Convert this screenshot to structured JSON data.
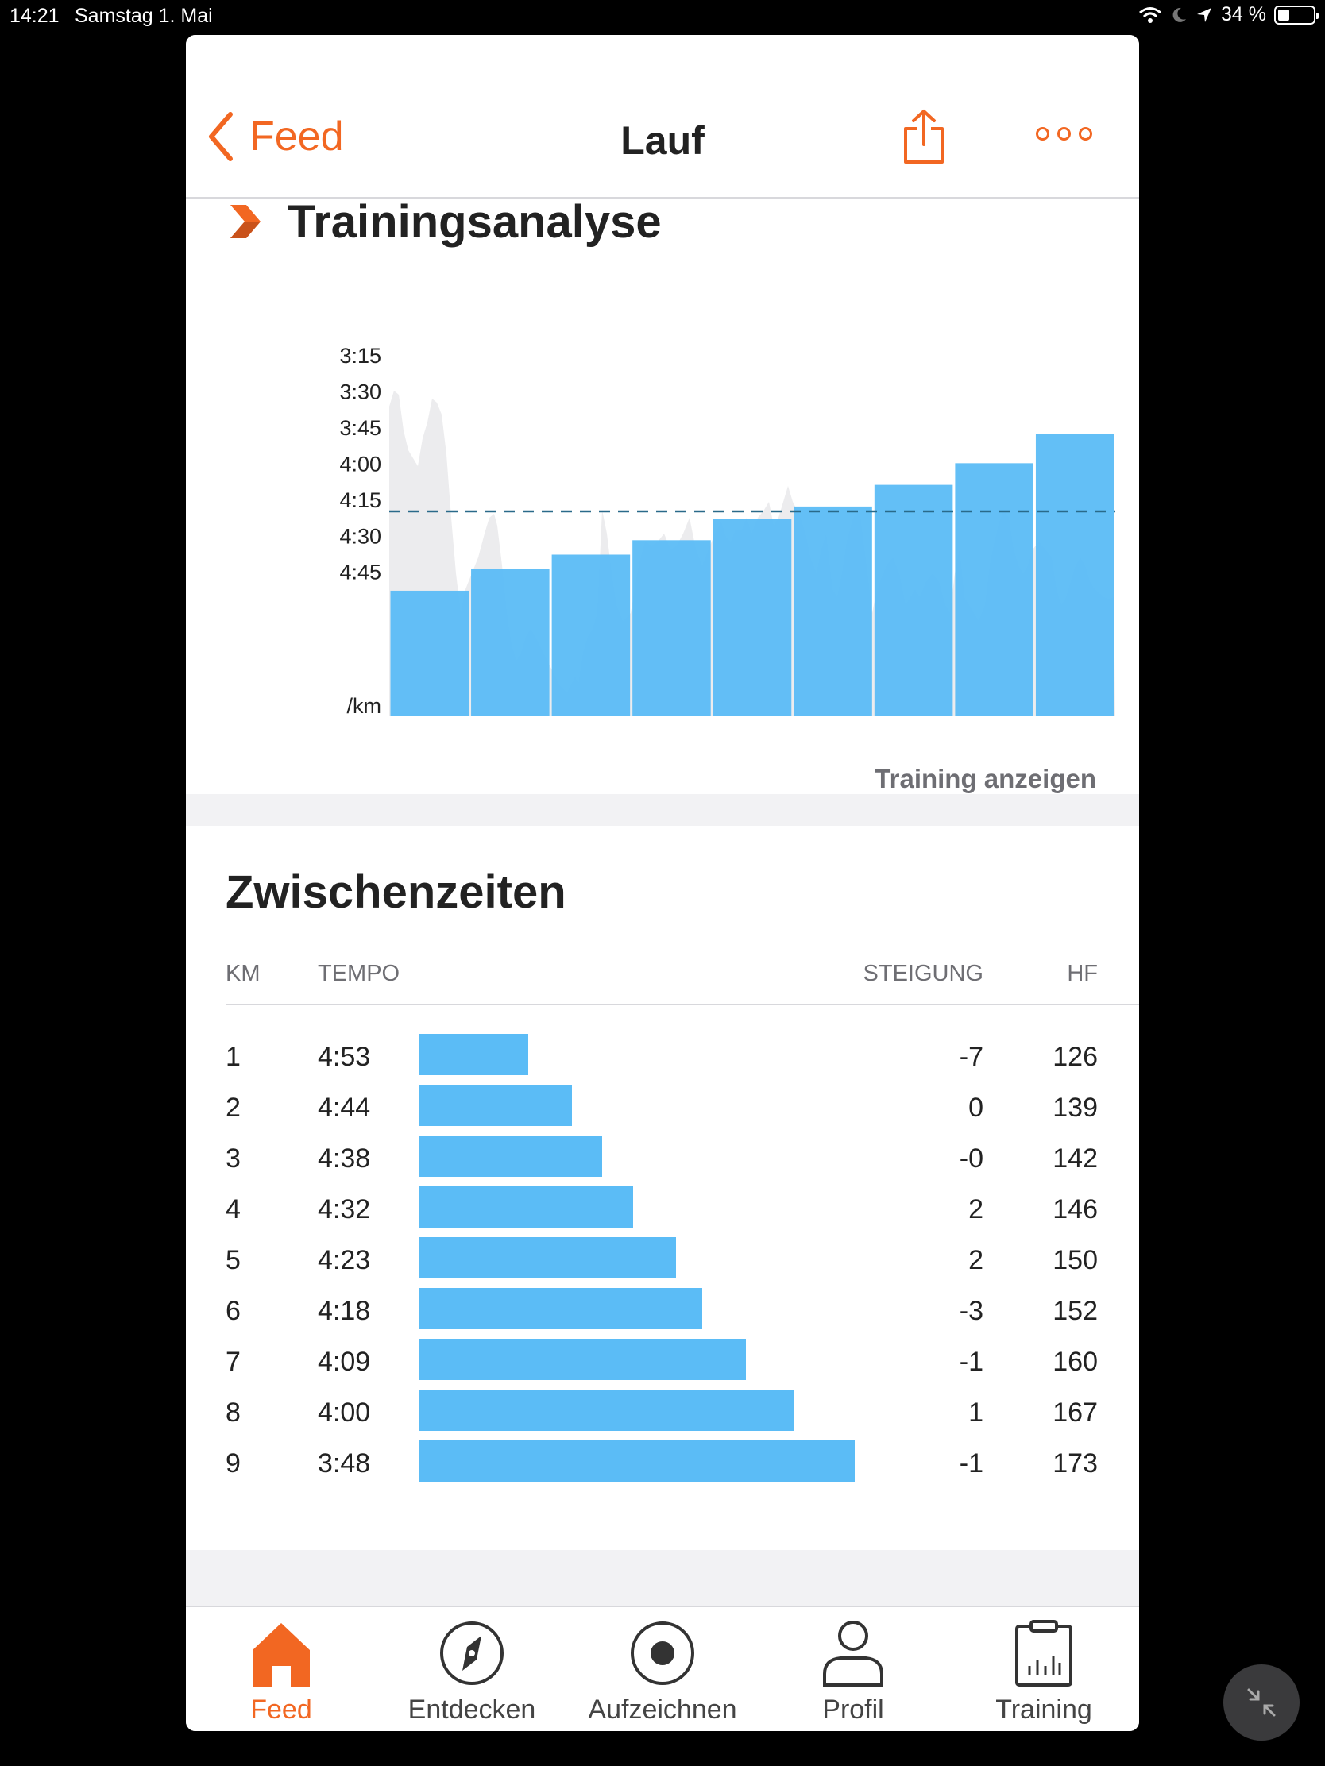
{
  "statusbar": {
    "time": "14:21",
    "date": "Samstag 1. Mai",
    "battery": "34 %"
  },
  "nav": {
    "back_label": "Feed",
    "title": "Lauf"
  },
  "analyse": {
    "title": "Trainingsanalyse",
    "link_label": "Training anzeigen"
  },
  "chart_data": {
    "type": "bar",
    "ylabel": "/km",
    "y_ticks": [
      "3:15",
      "3:30",
      "3:45",
      "4:00",
      "4:15",
      "4:30",
      "4:45"
    ],
    "y_unit": "/km",
    "ylim_seconds_per_km": [
      180,
      300
    ],
    "y_inverted": true,
    "categories": [
      "1",
      "2",
      "3",
      "4",
      "5",
      "6",
      "7",
      "8",
      "9"
    ],
    "values_pace": [
      "4:53",
      "4:44",
      "4:38",
      "4:32",
      "4:23",
      "4:18",
      "4:09",
      "4:00",
      "3:48"
    ],
    "values_seconds_per_km": [
      293,
      284,
      278,
      272,
      263,
      258,
      249,
      240,
      228
    ],
    "average_line_pace_seconds": 260,
    "bar_color": "#5bbcf6",
    "background_area_color": "#ececee"
  },
  "splits": {
    "title": "Zwischenzeiten",
    "headers": {
      "km": "KM",
      "tempo": "TEMPO",
      "steigung": "STEIGUNG",
      "hf": "HF"
    },
    "rows": [
      {
        "km": "1",
        "tempo": "4:53",
        "steigung": "-7",
        "hf": "126",
        "bar_fraction": 0.25
      },
      {
        "km": "2",
        "tempo": "4:44",
        "steigung": "0",
        "hf": "139",
        "bar_fraction": 0.35
      },
      {
        "km": "3",
        "tempo": "4:38",
        "steigung": "-0",
        "hf": "142",
        "bar_fraction": 0.42
      },
      {
        "km": "4",
        "tempo": "4:32",
        "steigung": "2",
        "hf": "146",
        "bar_fraction": 0.49
      },
      {
        "km": "5",
        "tempo": "4:23",
        "steigung": "2",
        "hf": "150",
        "bar_fraction": 0.59
      },
      {
        "km": "6",
        "tempo": "4:18",
        "steigung": "-3",
        "hf": "152",
        "bar_fraction": 0.65
      },
      {
        "km": "7",
        "tempo": "4:09",
        "steigung": "-1",
        "hf": "160",
        "bar_fraction": 0.75
      },
      {
        "km": "8",
        "tempo": "4:00",
        "steigung": "1",
        "hf": "167",
        "bar_fraction": 0.86
      },
      {
        "km": "9",
        "tempo": "3:48",
        "steigung": "-1",
        "hf": "173",
        "bar_fraction": 1.0
      }
    ]
  },
  "tabbar": {
    "tabs": [
      {
        "label": "Feed",
        "icon": "home-icon",
        "active": true
      },
      {
        "label": "Entdecken",
        "icon": "compass-icon",
        "active": false
      },
      {
        "label": "Aufzeichnen",
        "icon": "record-icon",
        "active": false
      },
      {
        "label": "Profil",
        "icon": "person-icon",
        "active": false
      },
      {
        "label": "Training",
        "icon": "clipboard-icon",
        "active": false
      }
    ]
  },
  "colors": {
    "accent": "#f26722",
    "bar": "#5bbcf6",
    "text": "#222222",
    "muted": "#6e6e73"
  }
}
